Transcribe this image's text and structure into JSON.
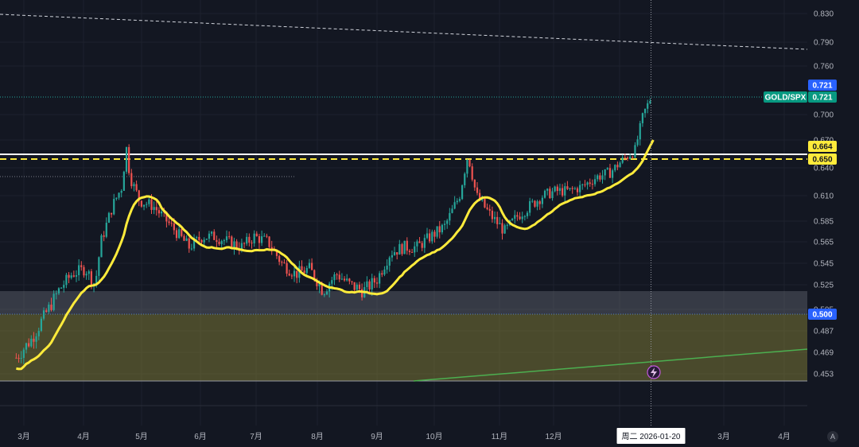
{
  "chart_data": {
    "type": "candlestick",
    "symbol": "GOLD/SPX",
    "last_price": "0.721",
    "crosshair_price_label": "0.721",
    "crosshair_date_label": "周二 2026-01-20",
    "x_tick_labels": [
      "3月",
      "4月",
      "5月",
      "6月",
      "7月",
      "8月",
      "9月",
      "10月",
      "11月",
      "12月",
      "3月",
      "4月"
    ],
    "y_tick_labels": [
      "0.830",
      "0.790",
      "0.760",
      "0.700",
      "0.670",
      "0.640",
      "0.610",
      "0.585",
      "0.565",
      "0.545",
      "0.525",
      "0.505",
      "0.487",
      "0.469",
      "0.453"
    ],
    "level_labels": {
      "white_line": "0.664",
      "dashed_line": "0.650",
      "zone_top": "0.500"
    },
    "ylim": [
      0.44,
      0.84
    ],
    "moving_average": {
      "color": "#ffeb3b"
    },
    "colors": {
      "up": "#26a69a",
      "down": "#ef5350",
      "ma": "#ffeb3b",
      "trend": "#4caf50",
      "background": "#131722"
    },
    "close_series": [
      {
        "x": "2025-02-25",
        "y": 0.465
      },
      {
        "x": "2025-03-05",
        "y": 0.48
      },
      {
        "x": "2025-03-12",
        "y": 0.5
      },
      {
        "x": "2025-03-19",
        "y": 0.52
      },
      {
        "x": "2025-03-26",
        "y": 0.535
      },
      {
        "x": "2025-04-02",
        "y": 0.54
      },
      {
        "x": "2025-04-07",
        "y": 0.525
      },
      {
        "x": "2025-04-10",
        "y": 0.565
      },
      {
        "x": "2025-04-16",
        "y": 0.6
      },
      {
        "x": "2025-04-21",
        "y": 0.62
      },
      {
        "x": "2025-04-23",
        "y": 0.665
      },
      {
        "x": "2025-04-25",
        "y": 0.63
      },
      {
        "x": "2025-04-30",
        "y": 0.605
      },
      {
        "x": "2025-05-07",
        "y": 0.6
      },
      {
        "x": "2025-05-12",
        "y": 0.59
      },
      {
        "x": "2025-05-19",
        "y": 0.575
      },
      {
        "x": "2025-05-26",
        "y": 0.56
      },
      {
        "x": "2025-06-02",
        "y": 0.57
      },
      {
        "x": "2025-06-09",
        "y": 0.57
      },
      {
        "x": "2025-06-16",
        "y": 0.565
      },
      {
        "x": "2025-06-23",
        "y": 0.56
      },
      {
        "x": "2025-06-30",
        "y": 0.57
      },
      {
        "x": "2025-07-07",
        "y": 0.565
      },
      {
        "x": "2025-07-14",
        "y": 0.545
      },
      {
        "x": "2025-07-21",
        "y": 0.535
      },
      {
        "x": "2025-07-28",
        "y": 0.54
      },
      {
        "x": "2025-08-04",
        "y": 0.52
      },
      {
        "x": "2025-08-11",
        "y": 0.535
      },
      {
        "x": "2025-08-18",
        "y": 0.525
      },
      {
        "x": "2025-08-25",
        "y": 0.52
      },
      {
        "x": "2025-09-01",
        "y": 0.53
      },
      {
        "x": "2025-09-08",
        "y": 0.555
      },
      {
        "x": "2025-09-15",
        "y": 0.56
      },
      {
        "x": "2025-09-22",
        "y": 0.56
      },
      {
        "x": "2025-09-29",
        "y": 0.57
      },
      {
        "x": "2025-10-06",
        "y": 0.58
      },
      {
        "x": "2025-10-13",
        "y": 0.61
      },
      {
        "x": "2025-10-17",
        "y": 0.655
      },
      {
        "x": "2025-10-21",
        "y": 0.61
      },
      {
        "x": "2025-10-28",
        "y": 0.59
      },
      {
        "x": "2025-11-04",
        "y": 0.575
      },
      {
        "x": "2025-11-11",
        "y": 0.59
      },
      {
        "x": "2025-11-18",
        "y": 0.6
      },
      {
        "x": "2025-11-25",
        "y": 0.61
      },
      {
        "x": "2025-12-02",
        "y": 0.615
      },
      {
        "x": "2025-12-09",
        "y": 0.615
      },
      {
        "x": "2025-12-16",
        "y": 0.62
      },
      {
        "x": "2025-12-23",
        "y": 0.63
      },
      {
        "x": "2025-12-30",
        "y": 0.635
      },
      {
        "x": "2026-01-06",
        "y": 0.65
      },
      {
        "x": "2026-01-12",
        "y": 0.66
      },
      {
        "x": "2026-01-16",
        "y": 0.7
      },
      {
        "x": "2026-01-20",
        "y": 0.721
      }
    ]
  },
  "ui": {
    "auto_scale_button": "A"
  }
}
